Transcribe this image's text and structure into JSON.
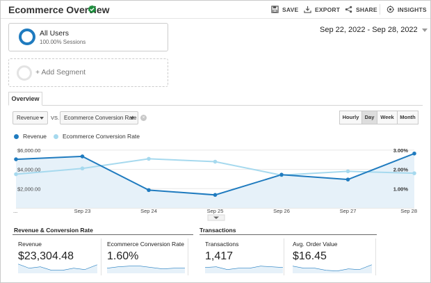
{
  "header": {
    "title": "Ecommerce Overview",
    "actions": {
      "save": "SAVE",
      "export": "EXPORT",
      "share": "SHARE",
      "insights": "INSIGHTS"
    }
  },
  "segments": {
    "active": {
      "name": "All Users",
      "detail": "100.00% Sessions"
    },
    "add_label": "+ Add Segment"
  },
  "date_range": "Sep 22, 2022 - Sep 28, 2022",
  "tabs": {
    "overview": "Overview"
  },
  "selectors": {
    "primary": "Revenue",
    "vs": "VS.",
    "secondary": "Ecommerce Conversion Rate"
  },
  "periods": {
    "hourly": "Hourly",
    "day": "Day",
    "week": "Week",
    "month": "Month"
  },
  "active_period": "Day",
  "colors": {
    "revenue": "#1f7bbf",
    "conversion": "#a6d9ee",
    "area": "#e6f1f9"
  },
  "chart_data": {
    "type": "line",
    "x": [
      "...",
      "Sep 23",
      "Sep 24",
      "Sep 25",
      "Sep 26",
      "Sep 27",
      "Sep 28"
    ],
    "left_axis_ticks": [
      "$6,000.00",
      "$4,000.00",
      "$2,000.00"
    ],
    "right_axis_ticks": [
      "3.00%",
      "2.00%",
      "1.00%"
    ],
    "ylim_left": [
      0,
      6500
    ],
    "ylim_right": [
      0,
      3.25
    ],
    "series": [
      {
        "name": "Revenue",
        "axis": "left",
        "values": [
          5050,
          5350,
          1850,
          1350,
          3450,
          2950,
          5650
        ]
      },
      {
        "name": "Ecommerce Conversion Rate",
        "axis": "right",
        "values": [
          1.75,
          2.05,
          2.55,
          2.4,
          1.7,
          1.9,
          1.8
        ]
      }
    ]
  },
  "sections": {
    "revenue_conversion": {
      "title": "Revenue & Conversion Rate",
      "cards": [
        {
          "label": "Revenue",
          "value": "$23,304.48"
        },
        {
          "label": "Ecommerce Conversion Rate",
          "value": "1.60%"
        }
      ]
    },
    "transactions": {
      "title": "Transactions",
      "cards": [
        {
          "label": "Transactions",
          "value": "1,417"
        },
        {
          "label": "Avg. Order Value",
          "value": "$16.45"
        }
      ]
    }
  }
}
